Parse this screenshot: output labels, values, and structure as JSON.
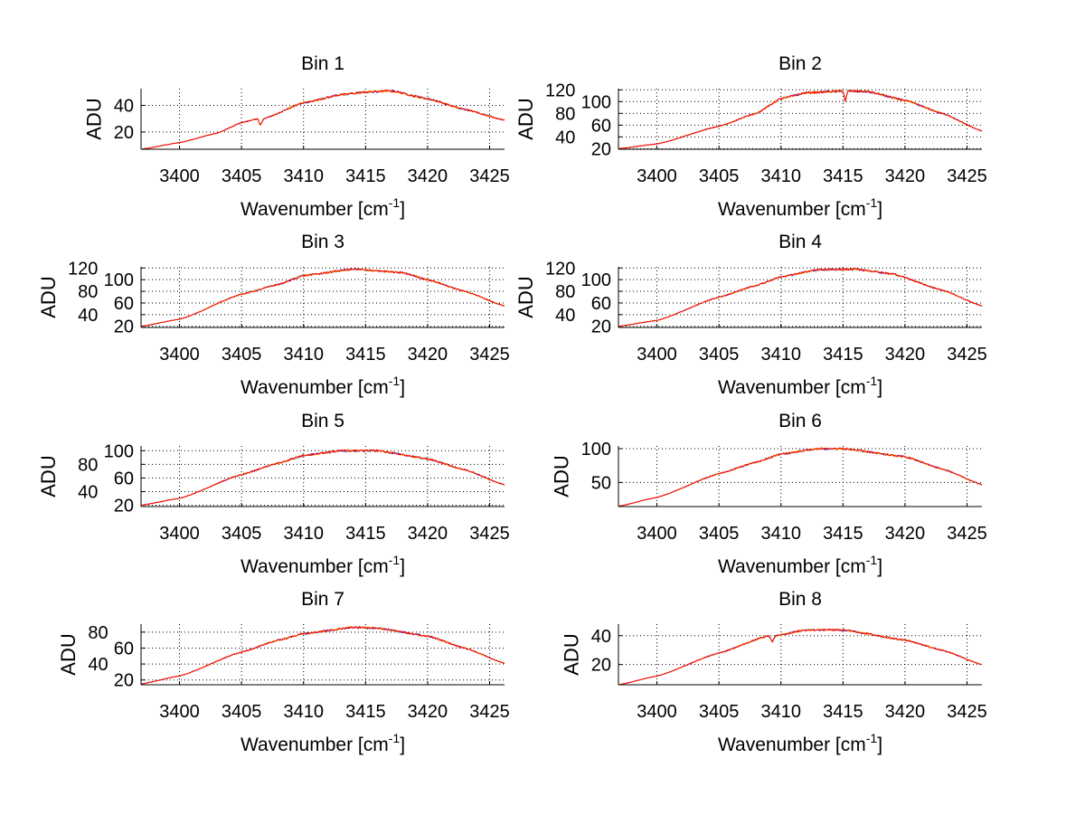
{
  "figure": {
    "background": "#ffffff"
  },
  "series_colors": [
    "#0000ff",
    "#ffcc00",
    "#ff0000"
  ],
  "chart_data": [
    {
      "type": "line",
      "title": "Bin 1",
      "xlabel": "Wavenumber [cm",
      "xlabel_sup": "-1",
      "xlabel_end": "]",
      "ylabel": "ADU",
      "xlim": [
        3396.9,
        3426.2
      ],
      "ylim": [
        7,
        52.6
      ],
      "xticks": [
        3400,
        3405,
        3410,
        3415,
        3420,
        3425
      ],
      "yticks": [
        20,
        40
      ],
      "grid": true,
      "points": [
        [
          3396.9,
          7
        ],
        [
          3400,
          12
        ],
        [
          3403,
          19
        ],
        [
          3405,
          27
        ],
        [
          3406.3,
          30
        ],
        [
          3406.5,
          25
        ],
        [
          3406.8,
          30
        ],
        [
          3410,
          42
        ],
        [
          3413,
          48
        ],
        [
          3415,
          50
        ],
        [
          3417,
          51
        ],
        [
          3420,
          45
        ],
        [
          3423,
          37
        ],
        [
          3426.2,
          29
        ]
      ],
      "noise": 0.8
    },
    {
      "type": "line",
      "title": "Bin 2",
      "xlabel": "Wavenumber [cm",
      "xlabel_sup": "-1",
      "xlabel_end": "]",
      "ylabel": "ADU",
      "xlim": [
        3396.9,
        3426.2
      ],
      "ylim": [
        19,
        122
      ],
      "xticks": [
        3400,
        3405,
        3410,
        3415,
        3420,
        3425
      ],
      "yticks": [
        20,
        40,
        60,
        80,
        100,
        120
      ],
      "grid": true,
      "points": [
        [
          3396.9,
          20
        ],
        [
          3400,
          28
        ],
        [
          3405,
          58
        ],
        [
          3408,
          80
        ],
        [
          3410,
          105
        ],
        [
          3412,
          115
        ],
        [
          3415,
          118
        ],
        [
          3415.2,
          100
        ],
        [
          3415.4,
          118
        ],
        [
          3417,
          117
        ],
        [
          3420,
          102
        ],
        [
          3423,
          80
        ],
        [
          3426.2,
          50
        ]
      ],
      "noise": 1.8
    },
    {
      "type": "line",
      "title": "Bin 3",
      "xlabel": "Wavenumber [cm",
      "xlabel_sup": "-1",
      "xlabel_end": "]",
      "ylabel": "ADU",
      "xlim": [
        3396.9,
        3426.2
      ],
      "ylim": [
        18,
        122
      ],
      "xticks": [
        3400,
        3405,
        3410,
        3415,
        3420,
        3425
      ],
      "yticks": [
        20,
        40,
        60,
        80,
        100,
        120
      ],
      "grid": true,
      "points": [
        [
          3396.9,
          20
        ],
        [
          3400,
          32
        ],
        [
          3405,
          75
        ],
        [
          3408,
          92
        ],
        [
          3410,
          107
        ],
        [
          3414,
          118
        ],
        [
          3418,
          112
        ],
        [
          3420,
          100
        ],
        [
          3423,
          80
        ],
        [
          3426.2,
          55
        ]
      ],
      "noise": 1.6
    },
    {
      "type": "line",
      "title": "Bin 4",
      "xlabel": "Wavenumber [cm",
      "xlabel_sup": "-1",
      "xlabel_end": "]",
      "ylabel": "ADU",
      "xlim": [
        3396.9,
        3426.2
      ],
      "ylim": [
        18,
        122
      ],
      "xticks": [
        3400,
        3405,
        3410,
        3415,
        3420,
        3425
      ],
      "yticks": [
        20,
        40,
        60,
        80,
        100,
        120
      ],
      "grid": true,
      "points": [
        [
          3396.9,
          20
        ],
        [
          3400,
          30
        ],
        [
          3405,
          70
        ],
        [
          3408,
          90
        ],
        [
          3410,
          105
        ],
        [
          3413,
          117
        ],
        [
          3416,
          118
        ],
        [
          3419,
          110
        ],
        [
          3423,
          82
        ],
        [
          3426.2,
          55
        ]
      ],
      "noise": 1.6
    },
    {
      "type": "line",
      "title": "Bin 5",
      "xlabel": "Wavenumber [cm",
      "xlabel_sup": "-1",
      "xlabel_end": "]",
      "ylabel": "ADU",
      "xlim": [
        3396.9,
        3426.2
      ],
      "ylim": [
        18,
        107
      ],
      "xticks": [
        3400,
        3405,
        3410,
        3415,
        3420,
        3425
      ],
      "yticks": [
        20,
        40,
        60,
        80,
        100
      ],
      "grid": true,
      "points": [
        [
          3396.9,
          20
        ],
        [
          3400,
          30
        ],
        [
          3405,
          65
        ],
        [
          3408,
          82
        ],
        [
          3410,
          93
        ],
        [
          3413,
          100
        ],
        [
          3416,
          100
        ],
        [
          3420,
          88
        ],
        [
          3423,
          72
        ],
        [
          3426.2,
          50
        ]
      ],
      "noise": 1.5
    },
    {
      "type": "line",
      "title": "Bin 6",
      "xlabel": "Wavenumber [cm",
      "xlabel_sup": "-1",
      "xlabel_end": "]",
      "ylabel": "ADU",
      "xlim": [
        3396.9,
        3426.2
      ],
      "ylim": [
        14.5,
        104
      ],
      "xticks": [
        3400,
        3405,
        3410,
        3415,
        3420,
        3425
      ],
      "yticks": [
        50,
        100
      ],
      "grid": true,
      "points": [
        [
          3396.9,
          15
        ],
        [
          3400,
          28
        ],
        [
          3405,
          63
        ],
        [
          3408,
          80
        ],
        [
          3410,
          92
        ],
        [
          3413,
          100
        ],
        [
          3415,
          100
        ],
        [
          3420,
          88
        ],
        [
          3423,
          70
        ],
        [
          3426.2,
          47
        ]
      ],
      "noise": 1.5
    },
    {
      "type": "line",
      "title": "Bin 7",
      "xlabel": "Wavenumber [cm",
      "xlabel_sup": "-1",
      "xlabel_end": "]",
      "ylabel": "ADU",
      "xlim": [
        3396.9,
        3426.2
      ],
      "ylim": [
        14,
        90
      ],
      "xticks": [
        3400,
        3405,
        3410,
        3415,
        3420,
        3425
      ],
      "yticks": [
        20,
        40,
        60,
        80
      ],
      "grid": true,
      "points": [
        [
          3396.9,
          15
        ],
        [
          3400,
          25
        ],
        [
          3405,
          55
        ],
        [
          3408,
          70
        ],
        [
          3410,
          78
        ],
        [
          3414,
          86
        ],
        [
          3416,
          85
        ],
        [
          3420,
          75
        ],
        [
          3423,
          60
        ],
        [
          3426.2,
          41
        ]
      ],
      "noise": 1.2
    },
    {
      "type": "line",
      "title": "Bin 8",
      "xlabel": "Wavenumber [cm",
      "xlabel_sup": "-1",
      "xlabel_end": "]",
      "ylabel": "ADU",
      "xlim": [
        3396.9,
        3426.2
      ],
      "ylim": [
        6,
        48
      ],
      "xticks": [
        3400,
        3405,
        3410,
        3415,
        3420,
        3425
      ],
      "yticks": [
        20,
        40
      ],
      "grid": true,
      "points": [
        [
          3396.9,
          6
        ],
        [
          3400,
          12
        ],
        [
          3405,
          28
        ],
        [
          3409,
          40
        ],
        [
          3409.3,
          36
        ],
        [
          3409.6,
          40
        ],
        [
          3412,
          44
        ],
        [
          3415,
          44
        ],
        [
          3420,
          37
        ],
        [
          3423,
          30
        ],
        [
          3426.2,
          20
        ]
      ],
      "noise": 0.7
    }
  ]
}
